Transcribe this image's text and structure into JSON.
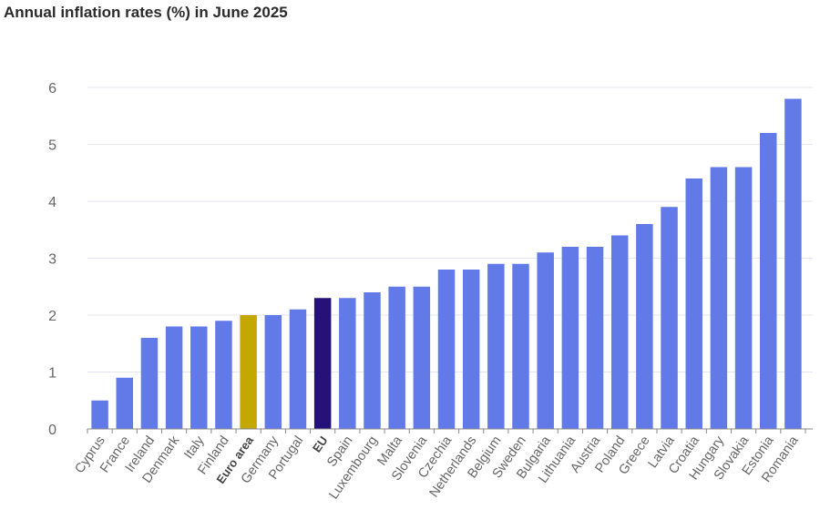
{
  "chart_data": {
    "type": "bar",
    "title": "Annual inflation rates (%) in June 2025",
    "xlabel": "",
    "ylabel": "",
    "ylim": [
      0,
      6
    ],
    "yticks": [
      0,
      1,
      2,
      3,
      4,
      5,
      6
    ],
    "grid": true,
    "legend": "none",
    "categories": [
      "Cyprus",
      "France",
      "Ireland",
      "Denmark",
      "Italy",
      "Finland",
      "Euro area",
      "Germany",
      "Portugal",
      "EU",
      "Spain",
      "Luxembourg",
      "Malta",
      "Slovenia",
      "Czechia",
      "Netherlands",
      "Belgium",
      "Sweden",
      "Bulgaria",
      "Lithuania",
      "Austria",
      "Poland",
      "Greece",
      "Latvia",
      "Croatia",
      "Hungary",
      "Slovakia",
      "Estonia",
      "Romania"
    ],
    "values": [
      0.5,
      0.9,
      1.6,
      1.8,
      1.8,
      1.9,
      2.0,
      2.0,
      2.1,
      2.3,
      2.3,
      2.4,
      2.5,
      2.5,
      2.8,
      2.8,
      2.9,
      2.9,
      3.1,
      3.2,
      3.2,
      3.4,
      3.6,
      3.9,
      4.4,
      4.6,
      4.6,
      5.2,
      5.8
    ],
    "highlighted": {
      "Euro area": "euro-area",
      "EU": "eu"
    },
    "colors": {
      "default": "#6279e8",
      "euro-area": "#c2a800",
      "eu": "#251178",
      "grid": "#e3e6f2",
      "axis": "#888888",
      "tick_label": "#666666"
    }
  }
}
